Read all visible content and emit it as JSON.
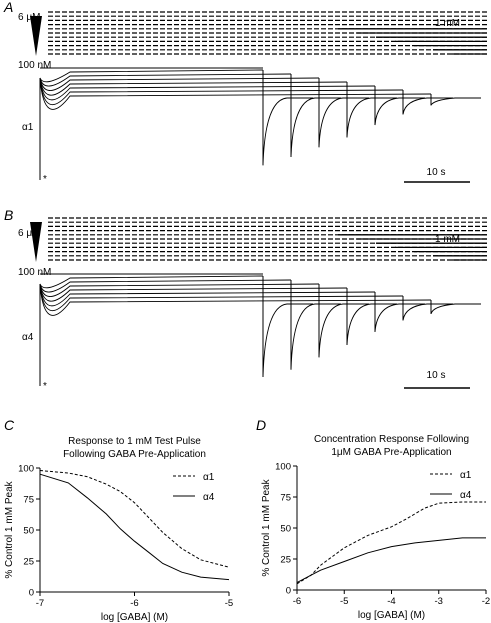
{
  "panel_a": {
    "label": "A",
    "conc_high": "6 μM",
    "conc_low": "100 nM",
    "conc_test": "1 mM",
    "subunit": "α1",
    "asterisk": "*",
    "scale_label": "10 s",
    "pre_current_levels": [
      0.03,
      0.05,
      0.08,
      0.13,
      0.2,
      0.3,
      0.45
    ],
    "test_peak_depths": [
      0.82,
      0.72,
      0.6,
      0.48,
      0.33,
      0.2,
      0.09
    ],
    "initial_peak_depth": 1.0
  },
  "panel_b": {
    "label": "B",
    "conc_high": "6 μM",
    "conc_low": "100 nM",
    "conc_test": "1 mM",
    "subunit": "α4",
    "asterisk": "*",
    "scale_label": "10 s",
    "pre_current_levels": [
      0.02,
      0.04,
      0.06,
      0.09,
      0.13,
      0.18,
      0.24
    ],
    "test_peak_depths": [
      0.89,
      0.8,
      0.65,
      0.5,
      0.34,
      0.2,
      0.12
    ],
    "initial_peak_depth": 1.0
  },
  "chart_data": [
    {
      "type": "line",
      "panel": "C",
      "title": "Response to 1 mM Test Pulse\nFollowing GABA Pre-Application",
      "xlabel": "log [GABA] (M)",
      "ylabel": "% Control 1 mM Peak",
      "xlim": [
        -7,
        -5
      ],
      "ylim": [
        0,
        100
      ],
      "xticks": [
        -7,
        -6,
        -5
      ],
      "yticks": [
        0,
        25,
        50,
        75,
        100
      ],
      "legend_position": "top-right",
      "series": [
        {
          "name": "α1",
          "style": "dashed",
          "x": [
            -7,
            -6.7,
            -6.5,
            -6.3,
            -6.15,
            -6.0,
            -5.85,
            -5.7,
            -5.5,
            -5.3,
            -5.0
          ],
          "y": [
            98,
            96,
            93,
            87,
            81,
            72,
            60,
            48,
            35,
            26,
            20
          ]
        },
        {
          "name": "α4",
          "style": "solid",
          "x": [
            -7,
            -6.7,
            -6.5,
            -6.3,
            -6.15,
            -6.0,
            -5.85,
            -5.7,
            -5.5,
            -5.3,
            -5.0
          ],
          "y": [
            95,
            88,
            76,
            63,
            51,
            41,
            32,
            23,
            16,
            12,
            10
          ]
        }
      ]
    },
    {
      "type": "line",
      "panel": "D",
      "title": "Concentration Response Following\n1μM GABA Pre-Application",
      "xlabel": "log [GABA] (M)",
      "ylabel": "% Control 1 mM Peak",
      "xlim": [
        -6,
        -2
      ],
      "ylim": [
        0,
        100
      ],
      "xticks": [
        -6,
        -5,
        -4,
        -3,
        -2
      ],
      "yticks": [
        0,
        25,
        50,
        75,
        100
      ],
      "legend_position": "top-right",
      "series": [
        {
          "name": "α1",
          "style": "dashed",
          "x": [
            -6.0,
            -5.7,
            -5.5,
            -5.0,
            -4.5,
            -4.0,
            -3.7,
            -3.3,
            -3.0,
            -2.5,
            -2.0
          ],
          "y": [
            5,
            12,
            20,
            34,
            44,
            51,
            57,
            66,
            70,
            71,
            71
          ]
        },
        {
          "name": "α4",
          "style": "solid",
          "x": [
            -6.0,
            -5.7,
            -5.5,
            -5.0,
            -4.5,
            -4.0,
            -3.5,
            -3.0,
            -2.5,
            -2.0
          ],
          "y": [
            6,
            12,
            16,
            23,
            30,
            35,
            38,
            40,
            42,
            42
          ]
        }
      ]
    }
  ]
}
